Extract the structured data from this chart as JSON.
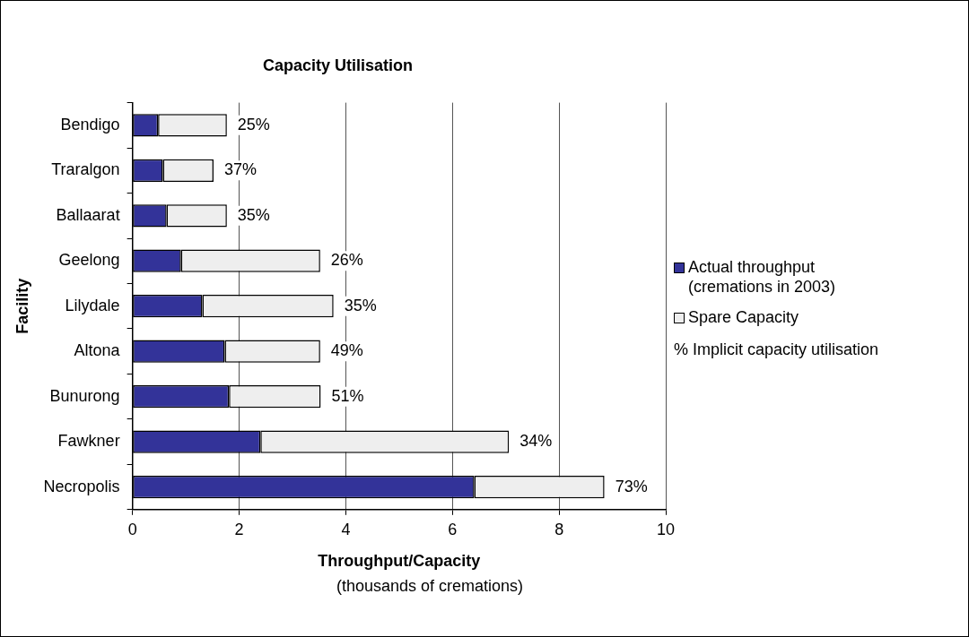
{
  "chart_data": {
    "type": "bar",
    "title": "Capacity Utilisation",
    "orientation": "horizontal",
    "stacked": true,
    "ylabel": "Facility",
    "xlabel": "Throughput/Capacity",
    "categories": [
      "Bendigo",
      "Traralgon",
      "Ballaarat",
      "Geelong",
      "Lilydale",
      "Altona",
      "Bunurong",
      "Fawkner",
      "Necropolis"
    ],
    "series": [
      {
        "name": "Actual throughput (cremations in 2003)",
        "color": "#333399",
        "values": [
          0.48,
          0.57,
          0.64,
          0.91,
          1.31,
          1.73,
          1.81,
          2.4,
          6.41
        ]
      },
      {
        "name": "Spare Capacity",
        "color": "#eeeeee",
        "values": [
          1.29,
          0.95,
          1.13,
          2.61,
          2.46,
          1.79,
          1.72,
          4.66,
          2.44
        ]
      }
    ],
    "xlim": [
      0,
      10
    ],
    "xticks": [
      0,
      2,
      4,
      6,
      8,
      10
    ],
    "grid": "x",
    "legend": "right",
    "annotations": [
      "(thousands of cremations)",
      "% Implicit capacity utilisation",
      "25%",
      "37%",
      "35%",
      "26%",
      "35%",
      "49%",
      "51%",
      "34%",
      "73%"
    ]
  }
}
